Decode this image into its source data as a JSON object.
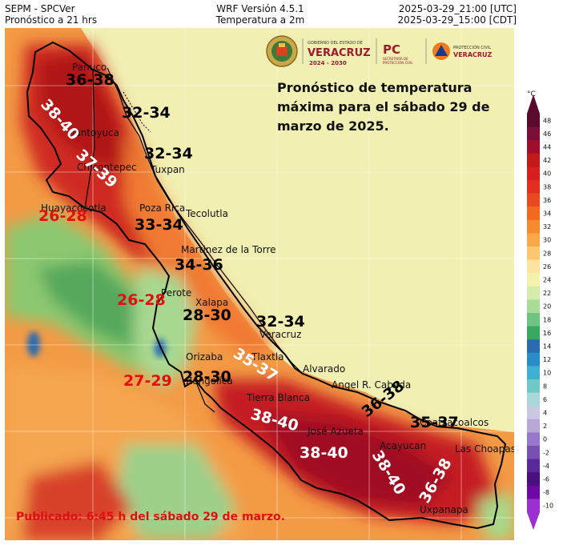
{
  "header": {
    "left_line1": "SEPM - SPCVer",
    "left_line2": "Pronóstico a 21 hrs",
    "center_line1": "WRF Versión 4.5.1",
    "center_line2": "Temperatura a 2m",
    "right_line1": "2025-03-29_21:00 [UTC]",
    "right_line2": "2025-03-29_15:00 [CDT]"
  },
  "logos": {
    "gobierno_line1": "GOBIERNO DEL ESTADO DE",
    "gobierno_line2": "VERACRUZ",
    "gobierno_line3": "2024 - 2030",
    "pc_mark": "PC",
    "pc_line1": "SECRETARÍA DE",
    "pc_line2": "PROTECCIÓN CIVIL",
    "pcv_line1": "PROTECCIÓN CIVIL",
    "pcv_line2": "VERACRUZ"
  },
  "forecast_title": "Pronóstico de temperatura máxima para el sábado 29 de marzo de 2025.",
  "published_note": "Publicado: 6:45 h del sábado 29 de marzo.",
  "colorbar": {
    "unit": "°C",
    "ticks": [
      "48",
      "46",
      "44",
      "42",
      "40",
      "38",
      "36",
      "34",
      "32",
      "30",
      "28",
      "26",
      "24",
      "22",
      "20",
      "18",
      "16",
      "14",
      "12",
      "10",
      "8",
      "6",
      "4",
      "2",
      "0",
      "-2",
      "-4",
      "-6",
      "-8",
      "-10"
    ],
    "colors": [
      "#5a0a2a",
      "#7a0f3a",
      "#a00f2a",
      "#c01a1a",
      "#d42020",
      "#e03020",
      "#e84a20",
      "#f06a20",
      "#f58a30",
      "#f8a848",
      "#fbc870",
      "#fde2a0",
      "#f4f0b0",
      "#d6ecac",
      "#a8dc98",
      "#70c480",
      "#3aa860",
      "#2a6cb0",
      "#2a8cc8",
      "#40b0d0",
      "#70c8c8",
      "#a8d8d8",
      "#c8c8e0",
      "#b8a8d8",
      "#9878c8",
      "#7850b0",
      "#5a2898",
      "#4a1080",
      "#6a0aa0",
      "#9a30d0"
    ]
  },
  "place_names": [
    {
      "id": "panuco",
      "text": "Panuco"
    },
    {
      "id": "tantoyuca",
      "text": "Tantoyuca"
    },
    {
      "id": "chicontepec",
      "text": "Chicontepec"
    },
    {
      "id": "tuxpan",
      "text": "Tuxpan"
    },
    {
      "id": "huayacocotla",
      "text": "Huayacocotla"
    },
    {
      "id": "poza-rica",
      "text": "Poza Rica"
    },
    {
      "id": "tecolutla",
      "text": "Tecolutla"
    },
    {
      "id": "martinez",
      "text": "Martinez de la Torre"
    },
    {
      "id": "perote",
      "text": "Perote"
    },
    {
      "id": "xalapa",
      "text": "Xalapa"
    },
    {
      "id": "veracruz",
      "text": "Veracruz"
    },
    {
      "id": "orizaba",
      "text": "Orizaba"
    },
    {
      "id": "zongolica",
      "text": "Zongolica"
    },
    {
      "id": "tlaxtla",
      "text": "Tlaxtla"
    },
    {
      "id": "alvarado",
      "text": "Alvarado"
    },
    {
      "id": "angel",
      "text": "Angel R. Cabada"
    },
    {
      "id": "tierra-blanca",
      "text": "Tierra Blanca"
    },
    {
      "id": "jose-azueta",
      "text": "José Azueta"
    },
    {
      "id": "acayucan",
      "text": "Acayucan"
    },
    {
      "id": "coatzacoalcos",
      "text": "Coatzacoalcos"
    },
    {
      "id": "las-choapas",
      "text": "Las Choapas"
    },
    {
      "id": "uxpanapa",
      "text": "Uxpanapa"
    }
  ],
  "temperature_labels": [
    {
      "id": "t1",
      "text": "36-38",
      "color": "#000000"
    },
    {
      "id": "t2",
      "text": "32-34",
      "color": "#000000"
    },
    {
      "id": "t3",
      "text": "38-40",
      "color": "#ffffff"
    },
    {
      "id": "t4",
      "text": "32-34",
      "color": "#000000"
    },
    {
      "id": "t5",
      "text": "37-39",
      "color": "#ffffff"
    },
    {
      "id": "t6",
      "text": "26-28",
      "color": "#e01010"
    },
    {
      "id": "t7",
      "text": "33-34",
      "color": "#000000"
    },
    {
      "id": "t8",
      "text": "34-36",
      "color": "#000000"
    },
    {
      "id": "t9",
      "text": "26-28",
      "color": "#e01010"
    },
    {
      "id": "t10",
      "text": "28-30",
      "color": "#000000"
    },
    {
      "id": "t11",
      "text": "32-34",
      "color": "#000000"
    },
    {
      "id": "t12",
      "text": "35-37",
      "color": "#ffffff"
    },
    {
      "id": "t13",
      "text": "27-29",
      "color": "#e01010"
    },
    {
      "id": "t14",
      "text": "28-30",
      "color": "#000000"
    },
    {
      "id": "t15",
      "text": "38-40",
      "color": "#ffffff"
    },
    {
      "id": "t16",
      "text": "36-38",
      "color": "#000000"
    },
    {
      "id": "t17",
      "text": "35-37",
      "color": "#000000"
    },
    {
      "id": "t18",
      "text": "38-40",
      "color": "#ffffff"
    },
    {
      "id": "t19",
      "text": "38-40",
      "color": "#ffffff"
    },
    {
      "id": "t20",
      "text": "36-38",
      "color": "#ffffff"
    }
  ]
}
